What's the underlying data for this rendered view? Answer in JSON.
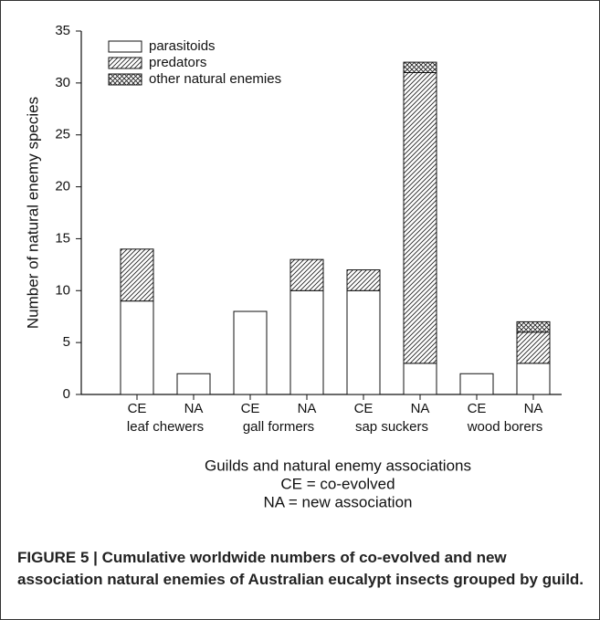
{
  "chart_data": {
    "type": "stacked_bar",
    "categories": [
      "CE",
      "NA",
      "CE",
      "NA",
      "CE",
      "NA",
      "CE",
      "NA"
    ],
    "group_labels": [
      "leaf chewers",
      "gall formers",
      "sap suckers",
      "wood borers"
    ],
    "series": [
      {
        "name": "parasitoids",
        "color": "#ffffff",
        "pattern": "none",
        "values": [
          9,
          2,
          8,
          10,
          10,
          3,
          2,
          3
        ]
      },
      {
        "name": "predators",
        "color": "#ffffff",
        "pattern": "diagonal",
        "values": [
          5,
          0,
          0,
          3,
          2,
          28,
          0,
          3
        ]
      },
      {
        "name": "other natural enemies",
        "color": "#ffffff",
        "pattern": "crosshatch",
        "values": [
          0,
          0,
          0,
          0,
          0,
          1,
          0,
          1
        ]
      }
    ],
    "ylabel": "Number of natural enemy species",
    "xlabel": [
      "Guilds and natural enemy associations",
      "CE = co-evolved",
      "NA = new association"
    ],
    "ylim": [
      0,
      35
    ],
    "yticks": [
      0,
      5,
      10,
      15,
      20,
      25,
      30,
      35
    ],
    "legend": "upper left",
    "caption": "FIGURE 5 | Cumulative worldwide numbers of co-evolved and new association natural enemies of Australian eucalypt insects grouped by guild."
  }
}
